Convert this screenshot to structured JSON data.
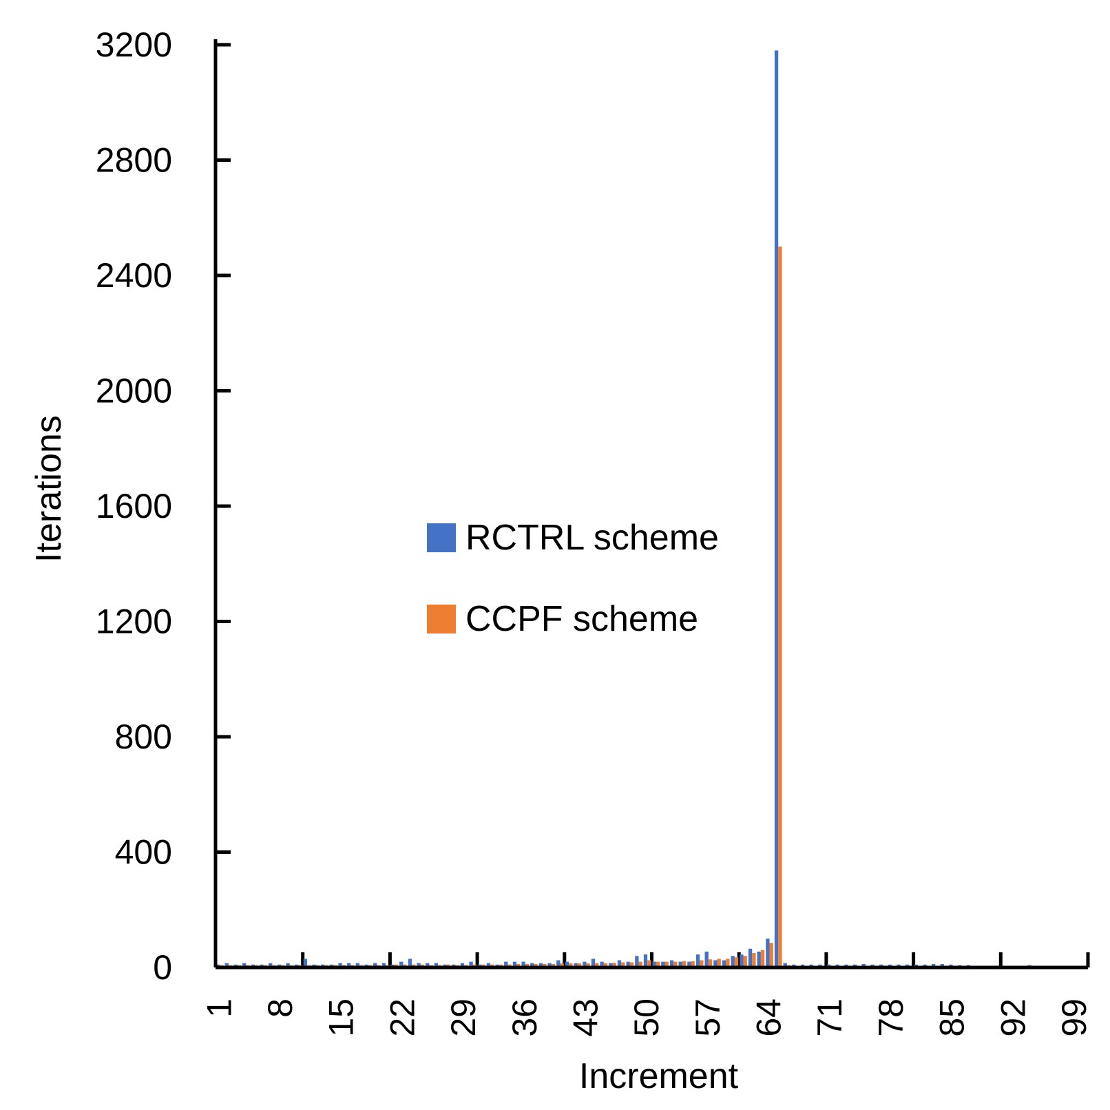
{
  "chart_data": {
    "type": "bar",
    "xlabel": "Increment",
    "ylabel": "Iterations",
    "ylim": [
      0,
      3200
    ],
    "yticks": [
      0,
      400,
      800,
      1200,
      1600,
      2000,
      2400,
      2800,
      3200
    ],
    "x_range": [
      1,
      100
    ],
    "xtick_labels": [
      "1",
      "8",
      "15",
      "22",
      "29",
      "36",
      "43",
      "50",
      "57",
      "64",
      "71",
      "78",
      "85",
      "92",
      "99"
    ],
    "grid": false,
    "legend_position": "center",
    "colors": {
      "RCTRL scheme": "#4472C4",
      "CCPF scheme": "#ED7D31"
    },
    "x": [
      1,
      2,
      3,
      4,
      5,
      6,
      7,
      8,
      9,
      10,
      11,
      12,
      13,
      14,
      15,
      16,
      17,
      18,
      19,
      20,
      21,
      22,
      23,
      24,
      25,
      26,
      27,
      28,
      29,
      30,
      31,
      32,
      33,
      34,
      35,
      36,
      37,
      38,
      39,
      40,
      41,
      42,
      43,
      44,
      45,
      46,
      47,
      48,
      49,
      50,
      51,
      52,
      53,
      54,
      55,
      56,
      57,
      58,
      59,
      60,
      61,
      62,
      63,
      64,
      65,
      66,
      67,
      68,
      69,
      70,
      71,
      72,
      73,
      74,
      75,
      76,
      77,
      78,
      79,
      80,
      81,
      82,
      83,
      84,
      85,
      86,
      87,
      88,
      89,
      90,
      91,
      92,
      93,
      94,
      95,
      96,
      97,
      98,
      99,
      100
    ],
    "series": [
      {
        "name": "RCTRL scheme",
        "values": [
          10,
          15,
          10,
          15,
          10,
          10,
          15,
          10,
          15,
          10,
          30,
          10,
          10,
          10,
          15,
          15,
          15,
          10,
          15,
          15,
          10,
          20,
          30,
          15,
          15,
          15,
          10,
          10,
          15,
          20,
          10,
          15,
          10,
          20,
          20,
          20,
          15,
          15,
          15,
          25,
          20,
          15,
          20,
          30,
          20,
          15,
          25,
          20,
          40,
          45,
          20,
          20,
          25,
          20,
          20,
          45,
          55,
          25,
          25,
          40,
          45,
          65,
          55,
          100,
          3180,
          15,
          10,
          10,
          10,
          10,
          10,
          10,
          10,
          10,
          12,
          10,
          10,
          10,
          10,
          10,
          10,
          10,
          12,
          12,
          10,
          8,
          8,
          5,
          5,
          5,
          5,
          5,
          5,
          8,
          5,
          5,
          5,
          5,
          5,
          5
        ]
      },
      {
        "name": "CCPF scheme",
        "values": [
          8,
          8,
          8,
          8,
          8,
          8,
          8,
          8,
          8,
          8,
          8,
          8,
          8,
          8,
          8,
          8,
          8,
          8,
          8,
          8,
          10,
          10,
          10,
          10,
          8,
          8,
          10,
          8,
          8,
          10,
          10,
          10,
          10,
          10,
          12,
          12,
          12,
          12,
          12,
          14,
          14,
          14,
          14,
          15,
          15,
          16,
          18,
          18,
          20,
          25,
          20,
          20,
          20,
          22,
          22,
          25,
          28,
          30,
          30,
          35,
          40,
          50,
          60,
          85,
          2500,
          8,
          5,
          5,
          5,
          5,
          5,
          5,
          5,
          5,
          5,
          5,
          5,
          5,
          5,
          5,
          5,
          5,
          5,
          5,
          5,
          5,
          5,
          5,
          5,
          5,
          5,
          5,
          5,
          5,
          5,
          5,
          5,
          5,
          5,
          5
        ]
      }
    ]
  }
}
